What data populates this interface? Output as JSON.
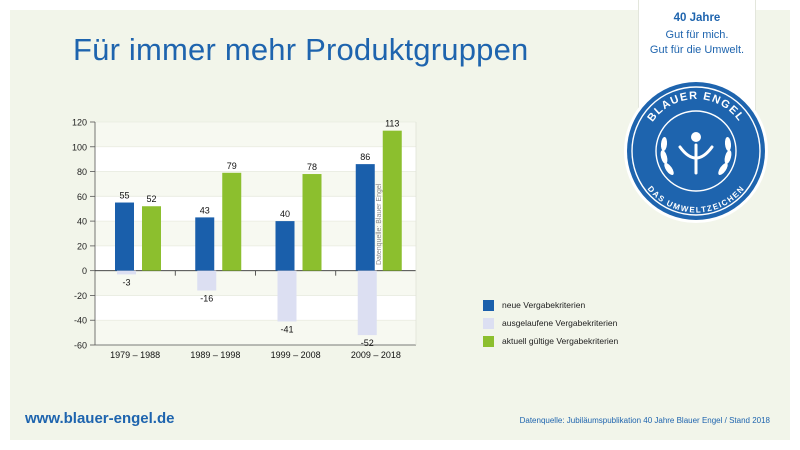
{
  "title": "Für immer mehr Produktgruppen",
  "badge": {
    "years": "40 Jahre",
    "line1": "Gut für mich.",
    "line2": "Gut für die Umwelt.",
    "seal_top_text": "BLAUER ENGEL",
    "seal_bottom_text": "DAS UMWELTZEICHEN"
  },
  "footer": {
    "url": "www.blauer-engel.de",
    "source": "Datenquelle: Jubiläumspublikation 40 Jahre Blauer Engel / Stand 2018"
  },
  "side_source": "Datenquelle: Blauer Engel",
  "colors": {
    "brand_blue": "#1e64ae",
    "neue": "#1a5fab",
    "ausgelaufene": "#dcdff2",
    "aktuell": "#8cbf2e",
    "panel_bg": "#f2f5ea"
  },
  "chart_data": {
    "type": "bar",
    "title": "",
    "xlabel": "",
    "ylabel": "",
    "ylim": [
      -60,
      120
    ],
    "yticks": [
      120,
      100,
      80,
      60,
      40,
      20,
      0,
      -20,
      -40,
      -60
    ],
    "grid": true,
    "legend_position": "right",
    "categories": [
      "1979 – 1988",
      "1989 – 1998",
      "1999 – 2008",
      "2009 – 2018"
    ],
    "series": [
      {
        "name": "neue Vergabekriterien",
        "values": [
          55,
          43,
          40,
          86
        ]
      },
      {
        "name": "ausgelaufene Vergabekriterien",
        "values": [
          -3,
          -16,
          -41,
          -52
        ]
      },
      {
        "name": "aktuell gültige Vergabekriterien",
        "values": [
          52,
          79,
          78,
          113
        ]
      }
    ]
  }
}
